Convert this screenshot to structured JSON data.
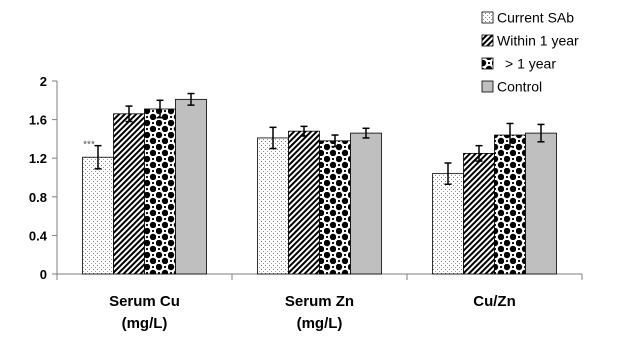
{
  "chart_data": {
    "type": "bar",
    "title": "",
    "xlabel": "",
    "ylabel": "",
    "ylim": [
      0,
      2
    ],
    "yticks": [
      0,
      0.4,
      0.8,
      1.2,
      1.6,
      2
    ],
    "ytick_labels": [
      "0",
      "0.4",
      "0.8",
      "1.2",
      "1.6",
      "2"
    ],
    "grid": false,
    "legend_position": "top-right",
    "categories": [
      [
        "Serum Cu",
        "(mg/L)"
      ],
      [
        "Serum Zn",
        "(mg/L)"
      ],
      [
        "Cu/Zn"
      ]
    ],
    "series": [
      {
        "name": "Current SAb",
        "pattern": "dots",
        "values": [
          1.21,
          1.41,
          1.04
        ],
        "errors": [
          0.12,
          0.11,
          0.11
        ]
      },
      {
        "name": "Within 1 year",
        "pattern": "diagonal-stripes",
        "values": [
          1.66,
          1.48,
          1.25
        ],
        "errors": [
          0.08,
          0.05,
          0.08
        ]
      },
      {
        "name": "> 1 year",
        "pattern": "checker",
        "values": [
          1.71,
          1.38,
          1.44
        ],
        "errors": [
          0.09,
          0.06,
          0.12
        ]
      },
      {
        "name": "Control",
        "pattern": "solid-gray",
        "values": [
          1.81,
          1.46,
          1.46
        ],
        "errors": [
          0.06,
          0.05,
          0.09
        ]
      }
    ],
    "annotations": [
      {
        "text": "***",
        "category_index": 0,
        "series_index": 0
      }
    ]
  }
}
